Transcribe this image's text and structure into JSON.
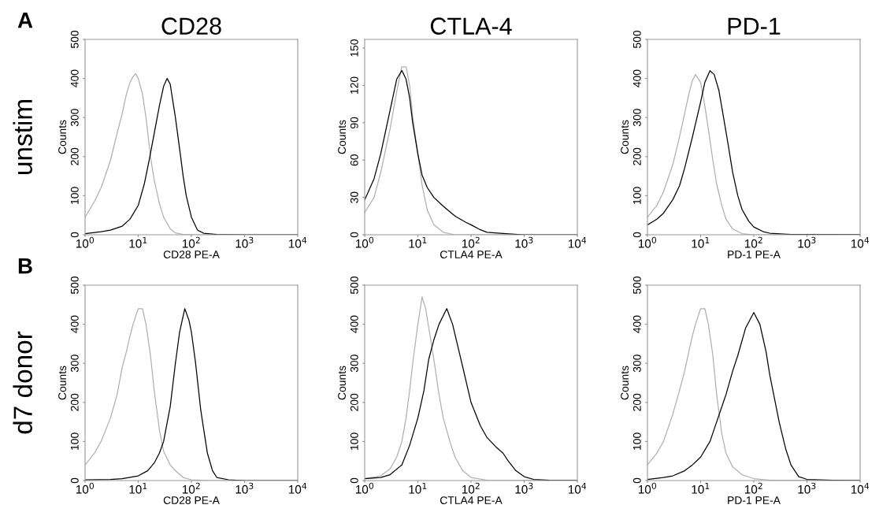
{
  "chart_data": [
    {
      "type": "line",
      "title": "CD28",
      "xlabel": "CD28 PE-A",
      "ylabel": "Counts",
      "annotations": [
        "A",
        "unstim"
      ],
      "log": "x",
      "xlim": [
        1,
        10000
      ],
      "xticks": [
        {
          "value": 1,
          "label": "10$^{0}$"
        },
        {
          "value": 10,
          "label": "10$^{1}$"
        },
        {
          "value": 100,
          "label": "10$^{2}$"
        },
        {
          "value": 1000,
          "label": "10$^{3}$"
        },
        {
          "value": 10000,
          "label": "10$^{4}$"
        }
      ],
      "ylim": [
        0,
        500
      ],
      "yticks": [
        0,
        100,
        200,
        300,
        400,
        500
      ],
      "series": [
        {
          "color": "#b0b0b0",
          "x": [
            1,
            1.5,
            2,
            3,
            4,
            5,
            6,
            7,
            8,
            9,
            10,
            12,
            14,
            17,
            20,
            25,
            30,
            40,
            50,
            70,
            100,
            10000
          ],
          "values": [
            45,
            85,
            120,
            190,
            260,
            310,
            360,
            390,
            405,
            412,
            400,
            360,
            300,
            200,
            140,
            80,
            45,
            15,
            5,
            1,
            0,
            0
          ]
        },
        {
          "color": "#000000",
          "x": [
            1,
            2,
            3,
            5,
            7,
            10,
            13,
            16,
            20,
            25,
            30,
            35,
            40,
            50,
            60,
            70,
            80,
            100,
            130,
            170,
            300,
            1000,
            10000
          ],
          "values": [
            3,
            8,
            12,
            22,
            40,
            75,
            130,
            190,
            260,
            330,
            380,
            400,
            385,
            300,
            220,
            150,
            100,
            45,
            12,
            4,
            1,
            0,
            0
          ]
        }
      ]
    },
    {
      "type": "line",
      "title": "CTLA-4",
      "xlabel": "CTLA4 PE-A",
      "ylabel": "Counts",
      "log": "x",
      "xlim": [
        1,
        10000
      ],
      "xticks": [
        {
          "value": 1,
          "label": "10$^{0}$"
        },
        {
          "value": 10,
          "label": "10$^{1}$"
        },
        {
          "value": 100,
          "label": "10$^{2}$"
        },
        {
          "value": 1000,
          "label": "10$^{3}$"
        },
        {
          "value": 10000,
          "label": "10$^{4}$"
        }
      ],
      "ylim": [
        0,
        157
      ],
      "yticks": [
        0,
        30,
        60,
        90,
        120,
        150
      ],
      "series": [
        {
          "color": "#b0b0b0",
          "x": [
            1,
            1.5,
            2,
            3,
            4,
            5,
            6,
            7,
            8,
            10,
            12,
            15,
            20,
            30,
            50,
            10000
          ],
          "values": [
            18,
            30,
            50,
            85,
            115,
            135,
            135,
            120,
            95,
            65,
            40,
            20,
            8,
            2,
            0,
            0
          ]
        },
        {
          "color": "#000000",
          "x": [
            1,
            1.5,
            2,
            3,
            4,
            5,
            6,
            7,
            8,
            10,
            12,
            15,
            20,
            30,
            50,
            80,
            100,
            150,
            200,
            400,
            1000,
            10000
          ],
          "values": [
            28,
            45,
            65,
            100,
            125,
            132,
            125,
            110,
            90,
            65,
            48,
            38,
            30,
            23,
            15,
            10,
            8,
            4,
            2,
            1,
            0,
            0
          ]
        }
      ]
    },
    {
      "type": "line",
      "title": "PD-1",
      "xlabel": "PD-1 PE-A",
      "ylabel": "Counts",
      "log": "x",
      "xlim": [
        1,
        10000
      ],
      "xticks": [
        {
          "value": 1,
          "label": "10$^{0}$"
        },
        {
          "value": 10,
          "label": "10$^{1}$"
        },
        {
          "value": 100,
          "label": "10$^{2}$"
        },
        {
          "value": 1000,
          "label": "10$^{3}$"
        },
        {
          "value": 10000,
          "label": "10$^{4}$"
        }
      ],
      "ylim": [
        0,
        500
      ],
      "yticks": [
        0,
        100,
        200,
        300,
        400,
        500
      ],
      "series": [
        {
          "color": "#b0b0b0",
          "x": [
            1,
            1.5,
            2,
            3,
            4,
            5,
            6,
            7,
            8,
            10,
            12,
            14,
            17,
            20,
            25,
            30,
            40,
            60,
            100,
            10000
          ],
          "values": [
            45,
            75,
            110,
            180,
            250,
            310,
            360,
            395,
            410,
            390,
            330,
            270,
            190,
            130,
            75,
            40,
            15,
            3,
            0,
            0
          ]
        },
        {
          "color": "#000000",
          "x": [
            1,
            1.5,
            2,
            3,
            4,
            5,
            7,
            10,
            12,
            15,
            18,
            22,
            27,
            33,
            40,
            50,
            60,
            80,
            100,
            150,
            200,
            500,
            10000
          ],
          "values": [
            25,
            40,
            55,
            90,
            125,
            170,
            250,
            340,
            390,
            420,
            410,
            370,
            300,
            230,
            160,
            100,
            65,
            35,
            20,
            8,
            4,
            1,
            0
          ]
        }
      ]
    },
    {
      "type": "line",
      "xlabel": "CD28 PE-A",
      "ylabel": "Counts",
      "annotations": [
        "B",
        "d7 donor"
      ],
      "log": "x",
      "xlim": [
        1,
        10000
      ],
      "xticks": [
        {
          "value": 1,
          "label": "10$^{0}$"
        },
        {
          "value": 10,
          "label": "10$^{1}$"
        },
        {
          "value": 100,
          "label": "10$^{2}$"
        },
        {
          "value": 1000,
          "label": "10$^{3}$"
        },
        {
          "value": 10000,
          "label": "10$^{4}$"
        }
      ],
      "ylim": [
        0,
        500
      ],
      "yticks": [
        0,
        100,
        200,
        300,
        400,
        500
      ],
      "series": [
        {
          "color": "#b0b0b0",
          "x": [
            1,
            1.5,
            2,
            3,
            4,
            5,
            6,
            7,
            8,
            10,
            12,
            14,
            17,
            20,
            25,
            30,
            40,
            50,
            70,
            100,
            200,
            10000
          ],
          "values": [
            40,
            70,
            100,
            160,
            220,
            290,
            330,
            370,
            400,
            440,
            440,
            400,
            320,
            230,
            130,
            75,
            40,
            25,
            8,
            2,
            0,
            0
          ]
        },
        {
          "color": "#000000",
          "x": [
            1,
            3,
            5,
            10,
            15,
            20,
            25,
            30,
            40,
            50,
            60,
            75,
            90,
            100,
            120,
            150,
            200,
            250,
            300,
            500,
            1000,
            10000
          ],
          "values": [
            2,
            3,
            5,
            12,
            25,
            45,
            70,
            100,
            190,
            300,
            380,
            440,
            410,
            380,
            300,
            180,
            70,
            25,
            8,
            2,
            0,
            0
          ]
        }
      ]
    },
    {
      "type": "line",
      "xlabel": "CTLA4 PE-A",
      "ylabel": "Counts",
      "log": "x",
      "xlim": [
        1,
        10000
      ],
      "xticks": [
        {
          "value": 1,
          "label": "10$^{0}$"
        },
        {
          "value": 10,
          "label": "10$^{1}$"
        },
        {
          "value": 100,
          "label": "10$^{2}$"
        },
        {
          "value": 1000,
          "label": "10$^{3}$"
        },
        {
          "value": 10000,
          "label": "10$^{4}$"
        }
      ],
      "ylim": [
        0,
        500
      ],
      "yticks": [
        0,
        100,
        200,
        300,
        400,
        500
      ],
      "series": [
        {
          "color": "#b0b0b0",
          "x": [
            1,
            2,
            3,
            4,
            5,
            6,
            7,
            8,
            10,
            12,
            14,
            17,
            20,
            25,
            30,
            40,
            50,
            70,
            100,
            200,
            10000
          ],
          "values": [
            5,
            12,
            30,
            60,
            100,
            160,
            230,
            300,
            400,
            470,
            440,
            370,
            310,
            220,
            160,
            100,
            60,
            25,
            8,
            1,
            0
          ]
        },
        {
          "color": "#000000",
          "x": [
            1,
            2,
            3,
            5,
            7,
            10,
            13,
            16,
            20,
            25,
            35,
            45,
            55,
            70,
            100,
            150,
            200,
            300,
            400,
            500,
            700,
            1000,
            1500,
            3000,
            10000
          ],
          "values": [
            5,
            8,
            15,
            40,
            90,
            160,
            230,
            310,
            360,
            400,
            440,
            400,
            350,
            290,
            200,
            140,
            110,
            85,
            70,
            50,
            25,
            10,
            3,
            1,
            0
          ]
        }
      ]
    },
    {
      "type": "line",
      "xlabel": "PD-1 PE-A",
      "ylabel": "Counts",
      "log": "x",
      "xlim": [
        1,
        10000
      ],
      "xticks": [
        {
          "value": 1,
          "label": "10$^{0}$"
        },
        {
          "value": 10,
          "label": "10$^{1}$"
        },
        {
          "value": 100,
          "label": "10$^{2}$"
        },
        {
          "value": 1000,
          "label": "10$^{3}$"
        },
        {
          "value": 10000,
          "label": "10$^{4}$"
        }
      ],
      "ylim": [
        0,
        500
      ],
      "yticks": [
        0,
        100,
        200,
        300,
        400,
        500
      ],
      "series": [
        {
          "color": "#b0b0b0",
          "x": [
            1,
            1.5,
            2,
            3,
            4,
            5,
            6,
            7,
            8,
            10,
            12,
            14,
            17,
            20,
            25,
            30,
            40,
            60,
            100,
            200,
            10000
          ],
          "values": [
            40,
            70,
            100,
            170,
            230,
            280,
            330,
            370,
            400,
            440,
            440,
            400,
            320,
            220,
            120,
            70,
            35,
            15,
            5,
            1,
            0
          ]
        },
        {
          "color": "#000000",
          "x": [
            1,
            2,
            3,
            5,
            7,
            10,
            15,
            20,
            30,
            40,
            50,
            70,
            100,
            130,
            170,
            200,
            300,
            400,
            500,
            700,
            1000,
            3000,
            10000
          ],
          "values": [
            3,
            8,
            12,
            25,
            40,
            60,
            100,
            150,
            220,
            280,
            320,
            390,
            430,
            400,
            330,
            270,
            150,
            80,
            40,
            10,
            3,
            1,
            0
          ]
        }
      ]
    }
  ]
}
